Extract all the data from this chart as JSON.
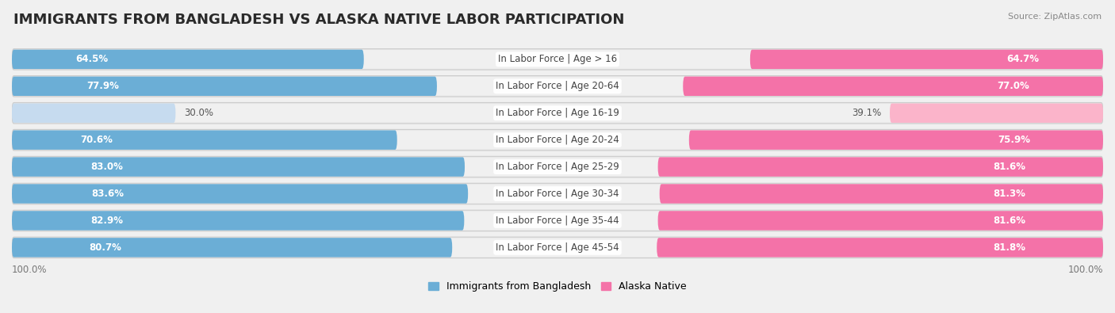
{
  "title": "IMMIGRANTS FROM BANGLADESH VS ALASKA NATIVE LABOR PARTICIPATION",
  "source": "Source: ZipAtlas.com",
  "categories": [
    "In Labor Force | Age > 16",
    "In Labor Force | Age 20-64",
    "In Labor Force | Age 16-19",
    "In Labor Force | Age 20-24",
    "In Labor Force | Age 25-29",
    "In Labor Force | Age 30-34",
    "In Labor Force | Age 35-44",
    "In Labor Force | Age 45-54"
  ],
  "bangladesh_values": [
    64.5,
    77.9,
    30.0,
    70.6,
    83.0,
    83.6,
    82.9,
    80.7
  ],
  "alaska_values": [
    64.7,
    77.0,
    39.1,
    75.9,
    81.6,
    81.3,
    81.6,
    81.8
  ],
  "bangladesh_color": "#6baed6",
  "alaska_color": "#f472a8",
  "bangladesh_color_light": "#c6dbef",
  "alaska_color_light": "#fbb4ca",
  "row_bg_color": "#e8e8e8",
  "row_inner_color": "#f5f5f5",
  "background_color": "#f0f0f0",
  "max_value": 100.0,
  "legend_bangladesh": "Immigrants from Bangladesh",
  "legend_alaska": "Alaska Native",
  "left_axis_label": "100.0%",
  "right_axis_label": "100.0%",
  "title_fontsize": 13,
  "value_fontsize": 8.5,
  "category_fontsize": 8.5
}
